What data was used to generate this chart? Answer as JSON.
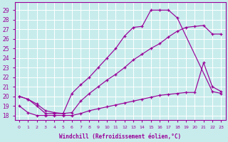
{
  "xlabel": "Windchill (Refroidissement éolien,°C)",
  "xlim": [
    -0.5,
    23.5
  ],
  "ylim": [
    17.5,
    29.8
  ],
  "yticks": [
    18,
    19,
    20,
    21,
    22,
    23,
    24,
    25,
    26,
    27,
    28,
    29
  ],
  "xticks": [
    0,
    1,
    2,
    3,
    4,
    5,
    6,
    7,
    8,
    9,
    10,
    11,
    12,
    13,
    14,
    15,
    16,
    17,
    18,
    19,
    20,
    21,
    22,
    23
  ],
  "bg_color": "#c8ecec",
  "line_color": "#990099",
  "grid_color": "#ffffff",
  "line_top_x": [
    0,
    1,
    2,
    3,
    4,
    5,
    6,
    7,
    8,
    9,
    10,
    11,
    12,
    13,
    14,
    15,
    16,
    17,
    18,
    22,
    23
  ],
  "line_top_y": [
    20.0,
    19.7,
    19.0,
    18.2,
    18.2,
    18.2,
    20.3,
    21.2,
    22.0,
    23.0,
    24.0,
    25.0,
    26.3,
    27.2,
    27.3,
    29.0,
    29.0,
    29.0,
    28.2,
    20.5,
    20.3
  ],
  "line_mid_x": [
    0,
    1,
    2,
    3,
    4,
    5,
    6,
    7,
    8,
    9,
    10,
    11,
    12,
    13,
    14,
    15,
    16,
    17,
    18,
    19,
    20,
    21,
    22,
    23
  ],
  "line_mid_y": [
    20.0,
    19.7,
    19.2,
    18.5,
    18.3,
    18.2,
    18.3,
    19.5,
    20.3,
    21.0,
    21.7,
    22.3,
    23.0,
    23.8,
    24.4,
    25.0,
    25.5,
    26.2,
    26.8,
    27.2,
    27.3,
    27.4,
    26.5,
    26.5
  ],
  "line_bot_x": [
    0,
    1,
    2,
    3,
    4,
    5,
    6,
    7,
    8,
    9,
    10,
    11,
    12,
    13,
    14,
    15,
    16,
    17,
    18,
    19,
    20,
    21,
    22,
    23
  ],
  "line_bot_y": [
    19.0,
    18.3,
    18.0,
    18.0,
    18.0,
    18.0,
    18.0,
    18.2,
    18.5,
    18.7,
    18.9,
    19.1,
    19.3,
    19.5,
    19.7,
    19.9,
    20.1,
    20.2,
    20.3,
    20.4,
    20.4,
    23.5,
    21.0,
    20.5
  ]
}
